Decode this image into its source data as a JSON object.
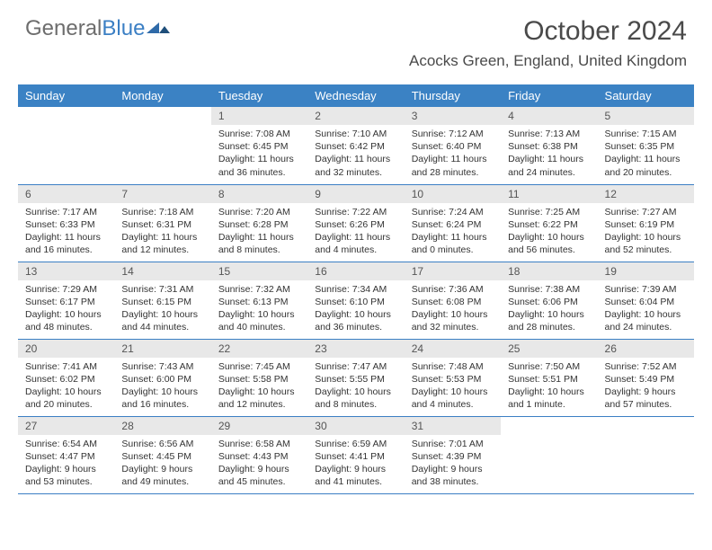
{
  "logo": {
    "text1": "General",
    "text2": "Blue"
  },
  "title": "October 2024",
  "location": "Acocks Green, England, United Kingdom",
  "colors": {
    "header_bg": "#3b82c4",
    "header_text": "#ffffff",
    "daynum_bg": "#e8e8e8",
    "border": "#3b7fc4",
    "logo_gray": "#6d6d6d",
    "logo_blue": "#3b7fc4"
  },
  "weekdays": [
    "Sunday",
    "Monday",
    "Tuesday",
    "Wednesday",
    "Thursday",
    "Friday",
    "Saturday"
  ],
  "weeks": [
    [
      null,
      null,
      {
        "n": "1",
        "sunrise": "7:08 AM",
        "sunset": "6:45 PM",
        "daylight": "11 hours and 36 minutes."
      },
      {
        "n": "2",
        "sunrise": "7:10 AM",
        "sunset": "6:42 PM",
        "daylight": "11 hours and 32 minutes."
      },
      {
        "n": "3",
        "sunrise": "7:12 AM",
        "sunset": "6:40 PM",
        "daylight": "11 hours and 28 minutes."
      },
      {
        "n": "4",
        "sunrise": "7:13 AM",
        "sunset": "6:38 PM",
        "daylight": "11 hours and 24 minutes."
      },
      {
        "n": "5",
        "sunrise": "7:15 AM",
        "sunset": "6:35 PM",
        "daylight": "11 hours and 20 minutes."
      }
    ],
    [
      {
        "n": "6",
        "sunrise": "7:17 AM",
        "sunset": "6:33 PM",
        "daylight": "11 hours and 16 minutes."
      },
      {
        "n": "7",
        "sunrise": "7:18 AM",
        "sunset": "6:31 PM",
        "daylight": "11 hours and 12 minutes."
      },
      {
        "n": "8",
        "sunrise": "7:20 AM",
        "sunset": "6:28 PM",
        "daylight": "11 hours and 8 minutes."
      },
      {
        "n": "9",
        "sunrise": "7:22 AM",
        "sunset": "6:26 PM",
        "daylight": "11 hours and 4 minutes."
      },
      {
        "n": "10",
        "sunrise": "7:24 AM",
        "sunset": "6:24 PM",
        "daylight": "11 hours and 0 minutes."
      },
      {
        "n": "11",
        "sunrise": "7:25 AM",
        "sunset": "6:22 PM",
        "daylight": "10 hours and 56 minutes."
      },
      {
        "n": "12",
        "sunrise": "7:27 AM",
        "sunset": "6:19 PM",
        "daylight": "10 hours and 52 minutes."
      }
    ],
    [
      {
        "n": "13",
        "sunrise": "7:29 AM",
        "sunset": "6:17 PM",
        "daylight": "10 hours and 48 minutes."
      },
      {
        "n": "14",
        "sunrise": "7:31 AM",
        "sunset": "6:15 PM",
        "daylight": "10 hours and 44 minutes."
      },
      {
        "n": "15",
        "sunrise": "7:32 AM",
        "sunset": "6:13 PM",
        "daylight": "10 hours and 40 minutes."
      },
      {
        "n": "16",
        "sunrise": "7:34 AM",
        "sunset": "6:10 PM",
        "daylight": "10 hours and 36 minutes."
      },
      {
        "n": "17",
        "sunrise": "7:36 AM",
        "sunset": "6:08 PM",
        "daylight": "10 hours and 32 minutes."
      },
      {
        "n": "18",
        "sunrise": "7:38 AM",
        "sunset": "6:06 PM",
        "daylight": "10 hours and 28 minutes."
      },
      {
        "n": "19",
        "sunrise": "7:39 AM",
        "sunset": "6:04 PM",
        "daylight": "10 hours and 24 minutes."
      }
    ],
    [
      {
        "n": "20",
        "sunrise": "7:41 AM",
        "sunset": "6:02 PM",
        "daylight": "10 hours and 20 minutes."
      },
      {
        "n": "21",
        "sunrise": "7:43 AM",
        "sunset": "6:00 PM",
        "daylight": "10 hours and 16 minutes."
      },
      {
        "n": "22",
        "sunrise": "7:45 AM",
        "sunset": "5:58 PM",
        "daylight": "10 hours and 12 minutes."
      },
      {
        "n": "23",
        "sunrise": "7:47 AM",
        "sunset": "5:55 PM",
        "daylight": "10 hours and 8 minutes."
      },
      {
        "n": "24",
        "sunrise": "7:48 AM",
        "sunset": "5:53 PM",
        "daylight": "10 hours and 4 minutes."
      },
      {
        "n": "25",
        "sunrise": "7:50 AM",
        "sunset": "5:51 PM",
        "daylight": "10 hours and 1 minute."
      },
      {
        "n": "26",
        "sunrise": "7:52 AM",
        "sunset": "5:49 PM",
        "daylight": "9 hours and 57 minutes."
      }
    ],
    [
      {
        "n": "27",
        "sunrise": "6:54 AM",
        "sunset": "4:47 PM",
        "daylight": "9 hours and 53 minutes."
      },
      {
        "n": "28",
        "sunrise": "6:56 AM",
        "sunset": "4:45 PM",
        "daylight": "9 hours and 49 minutes."
      },
      {
        "n": "29",
        "sunrise": "6:58 AM",
        "sunset": "4:43 PM",
        "daylight": "9 hours and 45 minutes."
      },
      {
        "n": "30",
        "sunrise": "6:59 AM",
        "sunset": "4:41 PM",
        "daylight": "9 hours and 41 minutes."
      },
      {
        "n": "31",
        "sunrise": "7:01 AM",
        "sunset": "4:39 PM",
        "daylight": "9 hours and 38 minutes."
      },
      null,
      null
    ]
  ],
  "labels": {
    "sunrise": "Sunrise:",
    "sunset": "Sunset:",
    "daylight": "Daylight:"
  }
}
